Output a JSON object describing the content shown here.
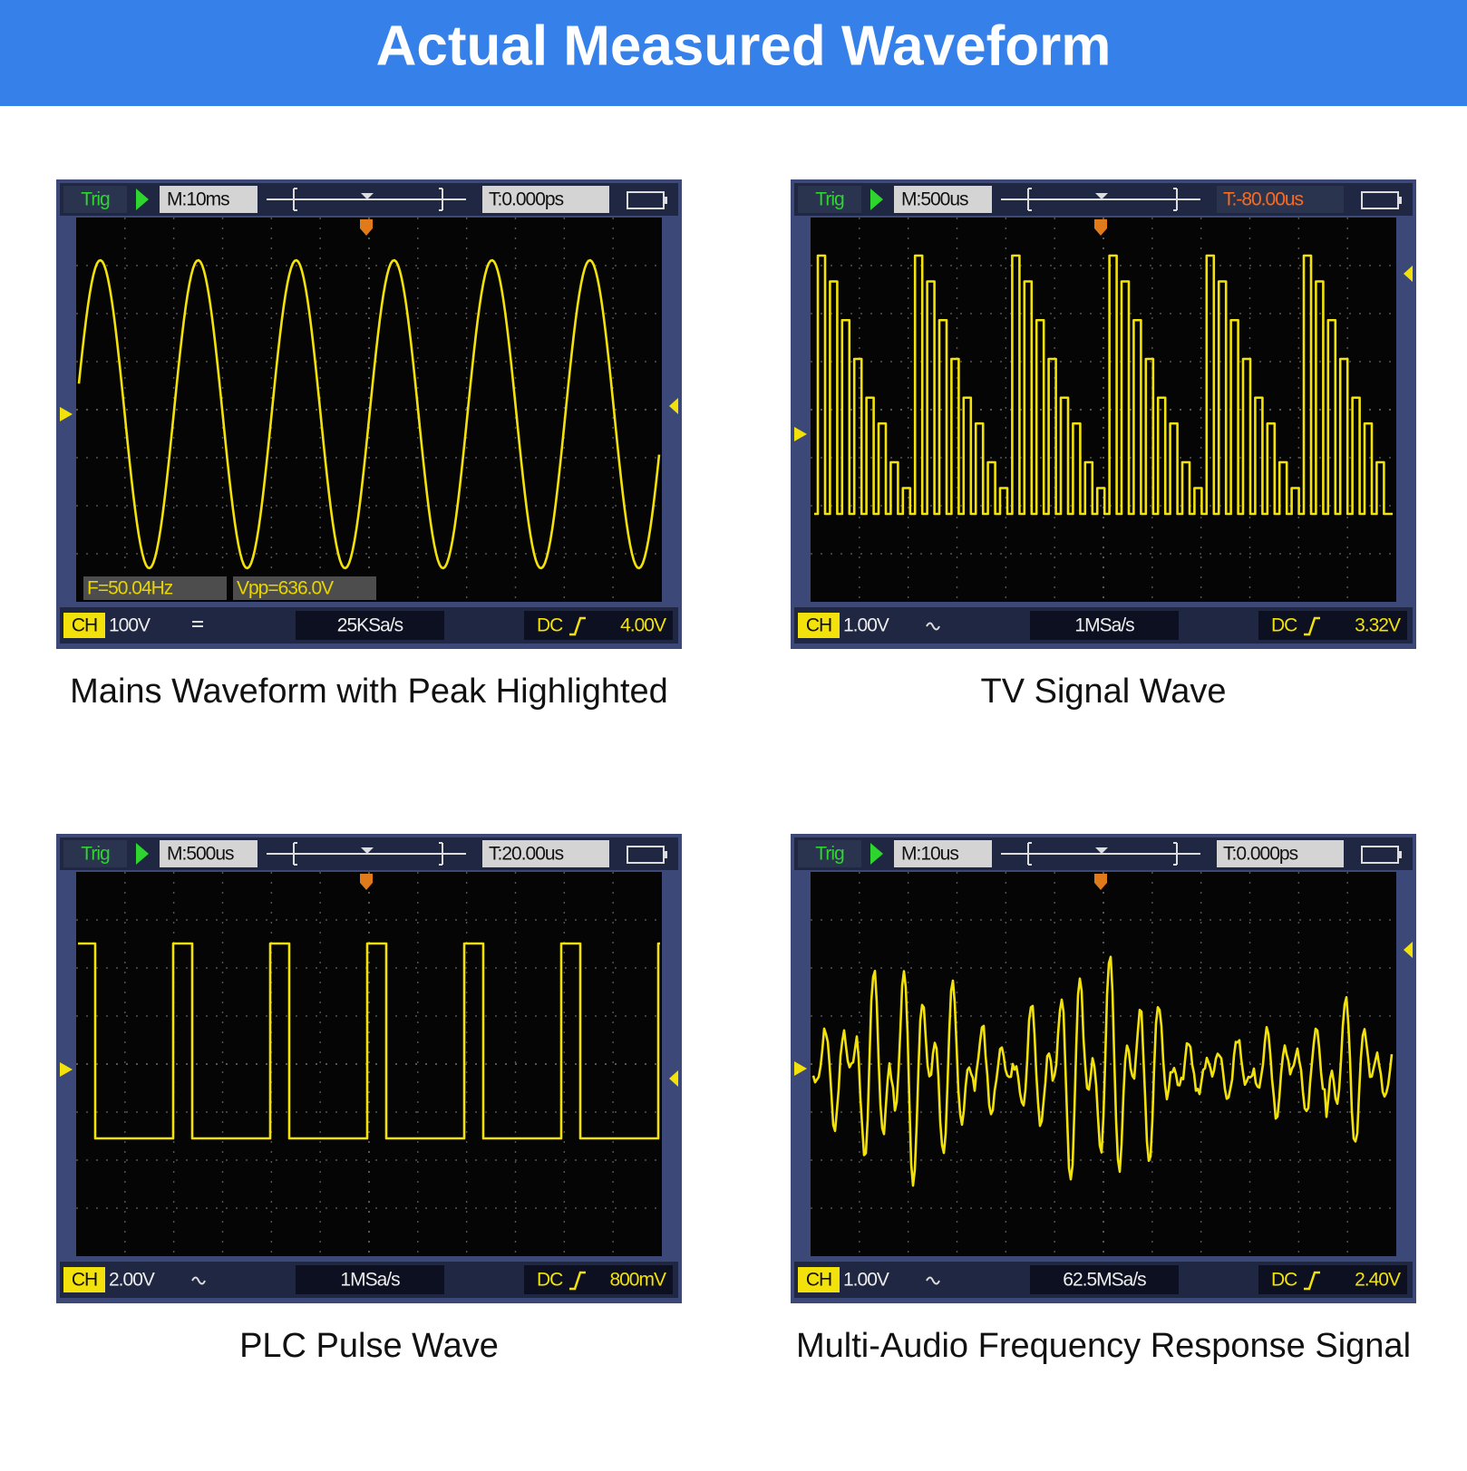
{
  "header": {
    "title": "Actual Measured Waveform"
  },
  "panels": [
    {
      "caption": "Mains Waveform with Peak Highlighted",
      "screen": {
        "trig": "Trig",
        "timebase": "M:10ms",
        "trigger_time": "T:0.000ps",
        "measurements": [
          "F=50.04Hz",
          "Vpp=636.0V"
        ],
        "channel": "CH",
        "volts_div": "100V",
        "sample_rate": "25KSa/s",
        "coupling": "DC",
        "trigger_level": "4.00V",
        "waveform": "sine"
      }
    },
    {
      "caption": "TV Signal Wave",
      "screen": {
        "trig": "Trig",
        "timebase": "M:500us",
        "trigger_time": "T:-80.00us",
        "trigger_time_color": "#ff6a1a",
        "channel": "CH",
        "volts_div": "1.00V",
        "sample_rate": "1MSa/s",
        "coupling": "DC",
        "trigger_level": "3.32V",
        "waveform": "tv"
      }
    },
    {
      "caption": "PLC Pulse Wave",
      "screen": {
        "trig": "Trig",
        "timebase": "M:500us",
        "trigger_time": "T:20.00us",
        "channel": "CH",
        "volts_div": "2.00V",
        "sample_rate": "1MSa/s",
        "coupling": "DC",
        "trigger_level": "800mV",
        "waveform": "pulse"
      }
    },
    {
      "caption": "Multi-Audio Frequency Response Signal",
      "screen": {
        "trig": "Trig",
        "timebase": "M:10us",
        "trigger_time": "T:0.000ps",
        "channel": "CH",
        "volts_div": "1.00V",
        "sample_rate": "62.5MSa/s",
        "coupling": "DC",
        "trigger_level": "2.40V",
        "waveform": "audio"
      }
    }
  ]
}
